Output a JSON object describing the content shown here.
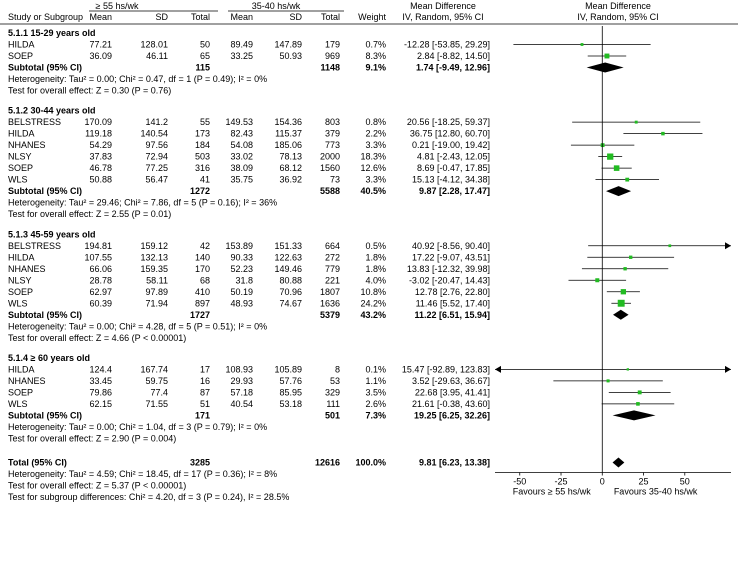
{
  "header": {
    "group1_label": "≥ 55 hs/wk",
    "group2_label": "35-40 hs/wk",
    "col_study": "Study or Subgroup",
    "col_mean1": "Mean",
    "col_sd1": "SD",
    "col_total1": "Total",
    "col_mean2": "Mean",
    "col_sd2": "SD",
    "col_total2": "Total",
    "col_weight": "Weight",
    "col_md_title": "Mean Difference",
    "col_md_sub": "IV, Random, 95% CI",
    "plot_title": "Mean Difference",
    "plot_sub": "IV, Random, 95% CI"
  },
  "chart_data": {
    "type": "forest",
    "xlim": [
      -65,
      78
    ],
    "xticks": [
      "-50",
      "-25",
      "0",
      "25",
      "50"
    ],
    "x_favours_left": "Favours ≥ 55 hs/wk",
    "x_favours_right": "Favours 35-40 hs/wk",
    "subgroups": [
      {
        "title": "5.1.1 15-29 years old",
        "studies": [
          {
            "name": "HILDA",
            "m1": "77.21",
            "sd1": "128.01",
            "n1": "50",
            "m2": "89.49",
            "sd2": "147.89",
            "n2": "179",
            "weight": "0.7%",
            "ci": "-12.28 [-53.85, 29.29]",
            "est": -12.28,
            "lo": -53.85,
            "hi": 29.29
          },
          {
            "name": "SOEP",
            "m1": "36.09",
            "sd1": "46.11",
            "n1": "65",
            "m2": "33.25",
            "sd2": "50.93",
            "n2": "969",
            "weight": "8.3%",
            "ci": "2.84 [-8.82, 14.50]",
            "est": 2.84,
            "lo": -8.82,
            "hi": 14.5
          }
        ],
        "subtotal": {
          "label": "Subtotal (95% CI)",
          "n1": "115",
          "n2": "1148",
          "weight": "9.1%",
          "ci": "1.74 [-9.49, 12.96]",
          "est": 1.74,
          "lo": -9.49,
          "hi": 12.96
        },
        "heterogeneity": "Heterogeneity: Tau² = 0.00; Chi² = 0.47, df = 1 (P = 0.49); I² = 0%",
        "overall_test": "Test for overall effect: Z = 0.30 (P = 0.76)"
      },
      {
        "title": "5.1.2 30-44 years old",
        "studies": [
          {
            "name": "BELSTRESS",
            "m1": "170.09",
            "sd1": "141.2",
            "n1": "55",
            "m2": "149.53",
            "sd2": "154.36",
            "n2": "803",
            "weight": "0.8%",
            "ci": "20.56 [-18.25, 59.37]",
            "est": 20.56,
            "lo": -18.25,
            "hi": 59.37
          },
          {
            "name": "HILDA",
            "m1": "119.18",
            "sd1": "140.54",
            "n1": "173",
            "m2": "82.43",
            "sd2": "115.37",
            "n2": "379",
            "weight": "2.2%",
            "ci": "36.75 [12.80, 60.70]",
            "est": 36.75,
            "lo": 12.8,
            "hi": 60.7
          },
          {
            "name": "NHANES",
            "m1": "54.29",
            "sd1": "97.56",
            "n1": "184",
            "m2": "54.08",
            "sd2": "185.06",
            "n2": "773",
            "weight": "3.3%",
            "ci": "0.21 [-19.00, 19.42]",
            "est": 0.21,
            "lo": -19.0,
            "hi": 19.42
          },
          {
            "name": "NLSY",
            "m1": "37.83",
            "sd1": "72.94",
            "n1": "503",
            "m2": "33.02",
            "sd2": "78.13",
            "n2": "2000",
            "weight": "18.3%",
            "ci": "4.81 [-2.43, 12.05]",
            "est": 4.81,
            "lo": -2.43,
            "hi": 12.05
          },
          {
            "name": "SOEP",
            "m1": "46.78",
            "sd1": "77.25",
            "n1": "316",
            "m2": "38.09",
            "sd2": "68.12",
            "n2": "1560",
            "weight": "12.6%",
            "ci": "8.69 [-0.47, 17.85]",
            "est": 8.69,
            "lo": -0.47,
            "hi": 17.85
          },
          {
            "name": "WLS",
            "m1": "50.88",
            "sd1": "56.47",
            "n1": "41",
            "m2": "35.75",
            "sd2": "36.92",
            "n2": "73",
            "weight": "3.3%",
            "ci": "15.13 [-4.12, 34.38]",
            "est": 15.13,
            "lo": -4.12,
            "hi": 34.38
          }
        ],
        "subtotal": {
          "label": "Subtotal (95% CI)",
          "n1": "1272",
          "n2": "5588",
          "weight": "40.5%",
          "ci": "9.87 [2.28, 17.47]",
          "est": 9.87,
          "lo": 2.28,
          "hi": 17.47
        },
        "heterogeneity": "Heterogeneity: Tau² = 29.46; Chi² = 7.86, df = 5 (P = 0.16); I² = 36%",
        "overall_test": "Test for overall effect: Z = 2.55 (P = 0.01)"
      },
      {
        "title": "5.1.3 45-59 years old",
        "studies": [
          {
            "name": "BELSTRESS",
            "m1": "194.81",
            "sd1": "159.12",
            "n1": "42",
            "m2": "153.89",
            "sd2": "151.33",
            "n2": "664",
            "weight": "0.5%",
            "ci": "40.92 [-8.56, 90.40]",
            "est": 40.92,
            "lo": -8.56,
            "hi": 90.4
          },
          {
            "name": "HILDA",
            "m1": "107.55",
            "sd1": "132.13",
            "n1": "140",
            "m2": "90.33",
            "sd2": "122.63",
            "n2": "272",
            "weight": "1.8%",
            "ci": "17.22 [-9.07, 43.51]",
            "est": 17.22,
            "lo": -9.07,
            "hi": 43.51
          },
          {
            "name": "NHANES",
            "m1": "66.06",
            "sd1": "159.35",
            "n1": "170",
            "m2": "52.23",
            "sd2": "149.46",
            "n2": "779",
            "weight": "1.8%",
            "ci": "13.83 [-12.32, 39.98]",
            "est": 13.83,
            "lo": -12.32,
            "hi": 39.98
          },
          {
            "name": "NLSY",
            "m1": "28.78",
            "sd1": "58.11",
            "n1": "68",
            "m2": "31.8",
            "sd2": "80.88",
            "n2": "221",
            "weight": "4.0%",
            "ci": "-3.02 [-20.47, 14.43]",
            "est": -3.02,
            "lo": -20.47,
            "hi": 14.43
          },
          {
            "name": "SOEP",
            "m1": "62.97",
            "sd1": "97.89",
            "n1": "410",
            "m2": "50.19",
            "sd2": "70.96",
            "n2": "1807",
            "weight": "10.8%",
            "ci": "12.78 [2.76, 22.80]",
            "est": 12.78,
            "lo": 2.76,
            "hi": 22.8
          },
          {
            "name": "WLS",
            "m1": "60.39",
            "sd1": "71.94",
            "n1": "897",
            "m2": "48.93",
            "sd2": "74.67",
            "n2": "1636",
            "weight": "24.2%",
            "ci": "11.46 [5.52, 17.40]",
            "est": 11.46,
            "lo": 5.52,
            "hi": 17.4
          }
        ],
        "subtotal": {
          "label": "Subtotal (95% CI)",
          "n1": "1727",
          "n2": "5379",
          "weight": "43.2%",
          "ci": "11.22 [6.51, 15.94]",
          "est": 11.22,
          "lo": 6.51,
          "hi": 15.94
        },
        "heterogeneity": "Heterogeneity: Tau² = 0.00; Chi² = 4.28, df = 5 (P = 0.51); I² = 0%",
        "overall_test": "Test for overall effect: Z = 4.66 (P < 0.00001)"
      },
      {
        "title": "5.1.4 ≥ 60 years old",
        "studies": [
          {
            "name": "HILDA",
            "m1": "124.4",
            "sd1": "167.74",
            "n1": "17",
            "m2": "108.93",
            "sd2": "105.89",
            "n2": "8",
            "weight": "0.1%",
            "ci": "15.47 [-92.89, 123.83]",
            "est": 15.47,
            "lo": -92.89,
            "hi": 123.83
          },
          {
            "name": "NHANES",
            "m1": "33.45",
            "sd1": "59.75",
            "n1": "16",
            "m2": "29.93",
            "sd2": "57.76",
            "n2": "53",
            "weight": "1.1%",
            "ci": "3.52 [-29.63, 36.67]",
            "est": 3.52,
            "lo": -29.63,
            "hi": 36.67
          },
          {
            "name": "SOEP",
            "m1": "79.86",
            "sd1": "77.4",
            "n1": "87",
            "m2": "57.18",
            "sd2": "85.95",
            "n2": "329",
            "weight": "3.5%",
            "ci": "22.68 [3.95, 41.41]",
            "est": 22.68,
            "lo": 3.95,
            "hi": 41.41
          },
          {
            "name": "WLS",
            "m1": "62.15",
            "sd1": "71.55",
            "n1": "51",
            "m2": "40.54",
            "sd2": "53.18",
            "n2": "111",
            "weight": "2.6%",
            "ci": "21.61 [-0.38, 43.60]",
            "est": 21.61,
            "lo": -0.38,
            "hi": 43.6
          }
        ],
        "subtotal": {
          "label": "Subtotal (95% CI)",
          "n1": "171",
          "n2": "501",
          "weight": "7.3%",
          "ci": "19.25 [6.25, 32.26]",
          "est": 19.25,
          "lo": 6.25,
          "hi": 32.26
        },
        "heterogeneity": "Heterogeneity: Tau² = 0.00; Chi² = 1.04, df = 3 (P = 0.79); I² = 0%",
        "overall_test": "Test for overall effect: Z = 2.90 (P = 0.004)"
      }
    ],
    "total": {
      "label": "Total (95% CI)",
      "n1": "3285",
      "n2": "12616",
      "weight": "100.0%",
      "ci": "9.81 [6.23, 13.38]",
      "est": 9.81,
      "lo": 6.23,
      "hi": 13.38
    },
    "footer": [
      "Heterogeneity: Tau² = 4.59; Chi² = 18.45, df = 17 (P = 0.36); I² = 8%",
      "Test for overall effect: Z = 5.37 (P < 0.00001)",
      "Test for subgroup differences: Chi² = 4.20, df = 3 (P = 0.24), I² = 28.5%"
    ],
    "colors": {
      "marker": "#22bb22",
      "diamond": "#000000",
      "line": "#000000"
    }
  }
}
